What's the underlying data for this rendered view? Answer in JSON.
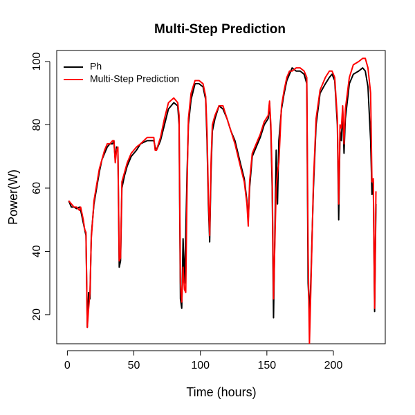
{
  "chart_data": {
    "type": "line",
    "title": "Multi-Step Prediction",
    "x_label": "Time (hours)",
    "y_label": "Power(W)",
    "x": [
      1,
      3,
      5,
      7,
      9,
      10,
      11,
      12,
      13,
      14,
      15,
      16,
      17,
      18,
      20,
      22,
      24,
      26,
      28,
      30,
      32,
      34,
      35,
      36,
      37,
      38,
      39,
      40,
      41,
      43,
      45,
      48,
      52,
      55,
      60,
      63,
      65,
      66,
      67,
      70,
      73,
      76,
      80,
      83,
      84,
      85,
      86,
      87,
      88,
      89,
      90,
      91,
      93,
      96,
      99,
      102,
      104,
      105,
      106,
      107,
      108,
      109,
      111,
      114,
      117,
      120,
      123,
      126,
      130,
      133,
      135,
      136,
      137,
      139,
      142,
      145,
      148,
      151,
      152,
      153,
      154,
      155,
      157,
      158,
      159,
      161,
      163,
      165,
      167,
      169,
      172,
      175,
      178,
      180,
      181,
      182,
      183,
      185,
      187,
      190,
      194,
      197,
      199,
      201,
      203,
      204,
      205,
      206,
      207,
      208,
      209,
      212,
      215,
      219,
      222,
      224,
      226,
      228,
      229,
      230,
      231,
      232
    ],
    "series": [
      {
        "name": "Ph",
        "color": "#000000",
        "values": [
          56,
          54,
          54,
          53.5,
          54,
          53,
          51,
          49,
          47,
          45,
          16,
          27,
          25,
          45,
          55,
          60,
          65,
          69,
          71,
          73,
          74,
          74,
          75,
          69,
          73,
          72,
          35,
          37,
          60,
          64,
          67,
          70,
          72,
          74,
          75,
          75,
          75,
          73,
          72,
          75,
          80,
          85,
          87,
          86,
          80,
          25,
          22,
          44,
          30,
          45,
          65,
          80,
          88,
          93,
          93,
          92,
          88,
          75,
          55,
          43,
          65,
          78,
          82,
          86,
          85,
          82,
          78,
          75,
          68,
          63,
          56,
          50,
          60,
          70,
          73,
          76,
          80,
          82,
          87,
          78,
          60,
          19,
          72,
          55,
          75,
          85,
          90,
          94,
          96,
          98,
          97,
          97,
          96,
          93,
          30,
          20,
          30,
          60,
          80,
          90,
          93,
          95,
          96,
          94,
          80,
          50,
          78,
          75,
          85,
          71,
          82,
          93,
          96,
          97,
          98,
          97,
          92,
          75,
          58,
          62,
          21,
          55
        ]
      },
      {
        "name": "Multi-Step Prediction",
        "color": "#ff0000",
        "values": [
          56,
          55,
          54,
          54,
          53,
          54,
          52,
          50,
          47,
          46,
          16,
          22,
          27,
          44,
          56,
          61,
          66,
          69,
          72,
          74,
          74,
          75,
          75,
          68,
          72,
          73,
          37,
          38,
          62,
          65,
          68,
          71,
          73,
          74,
          76,
          76,
          76,
          72,
          72,
          76,
          82,
          87,
          88.5,
          87,
          83,
          30,
          24,
          35,
          28,
          27,
          60,
          82,
          90,
          94,
          94,
          93,
          89,
          78,
          58,
          45,
          68,
          80,
          83,
          86,
          86,
          82,
          78,
          74,
          67,
          62,
          55,
          48,
          62,
          71,
          74,
          77,
          81,
          83,
          87.5,
          80,
          63,
          25,
          60,
          65,
          68,
          86,
          91,
          95,
          97,
          97,
          98,
          98,
          97,
          95,
          40,
          10.8,
          27,
          62,
          82,
          91,
          95,
          97,
          97,
          95,
          82,
          55,
          80,
          79,
          86,
          74,
          85,
          95,
          99,
          100,
          101,
          101,
          98,
          90,
          62,
          63,
          22,
          59
        ]
      }
    ],
    "xlim": [
      -8,
      239
    ],
    "ylim": [
      10.8,
      103.5
    ],
    "xticks": [
      0,
      50,
      100,
      150,
      200
    ],
    "yticks": [
      20,
      40,
      60,
      80,
      100
    ],
    "legend": "top-left"
  }
}
